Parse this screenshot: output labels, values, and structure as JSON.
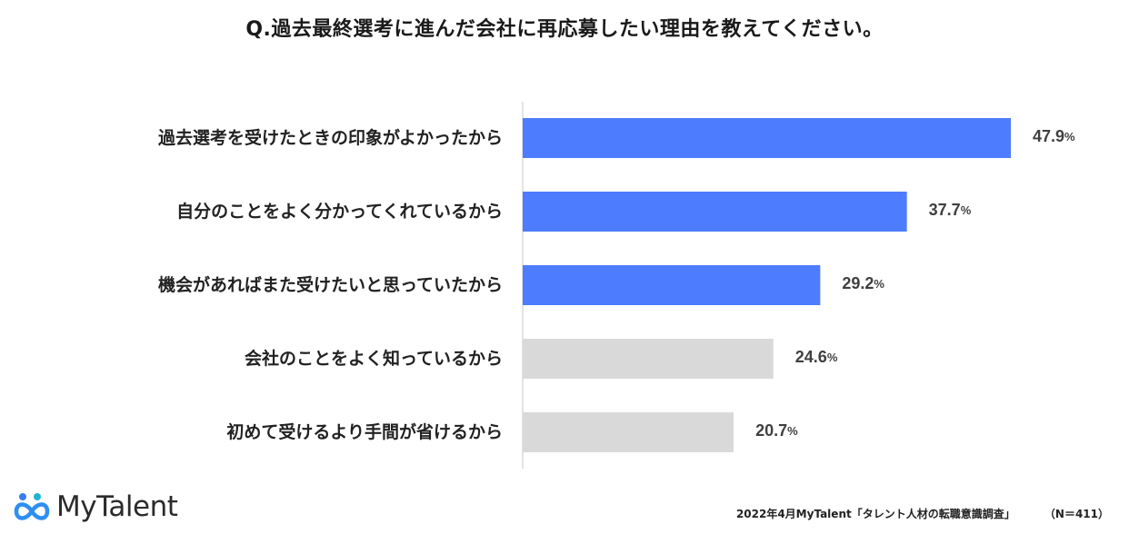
{
  "title": "Q.過去最終選考に進んだ会社に再応募したい理由を教えてください。",
  "colors": {
    "highlight": "#4d7cfe",
    "muted": "#d9d9d9",
    "axis": "#c8c8c8",
    "label": "#222222",
    "value": "#404040"
  },
  "chart_data": {
    "type": "bar",
    "orientation": "horizontal",
    "title": "Q.過去最終選考に進んだ会社に再応募したい理由を教えてください。",
    "xlabel": "",
    "ylabel": "",
    "unit": "%",
    "xlim": [
      0,
      50
    ],
    "grid": false,
    "categories": [
      "過去選考を受けたときの印象がよかったから",
      "自分のことをよく分かってくれているから",
      "機会があればまた受けたいと思っていたから",
      "会社のことをよく知っているから",
      "初めて受けるより手間が省けるから"
    ],
    "values": [
      47.9,
      37.7,
      29.2,
      24.6,
      20.7
    ],
    "highlighted": [
      true,
      true,
      true,
      false,
      false
    ]
  },
  "footer": {
    "source": "2022年4月MyTalent「タレント人材の転職意識調査」",
    "sample": "（N＝411）"
  },
  "logo": {
    "text": "MyTalent",
    "icon": "infinity-people-icon"
  }
}
